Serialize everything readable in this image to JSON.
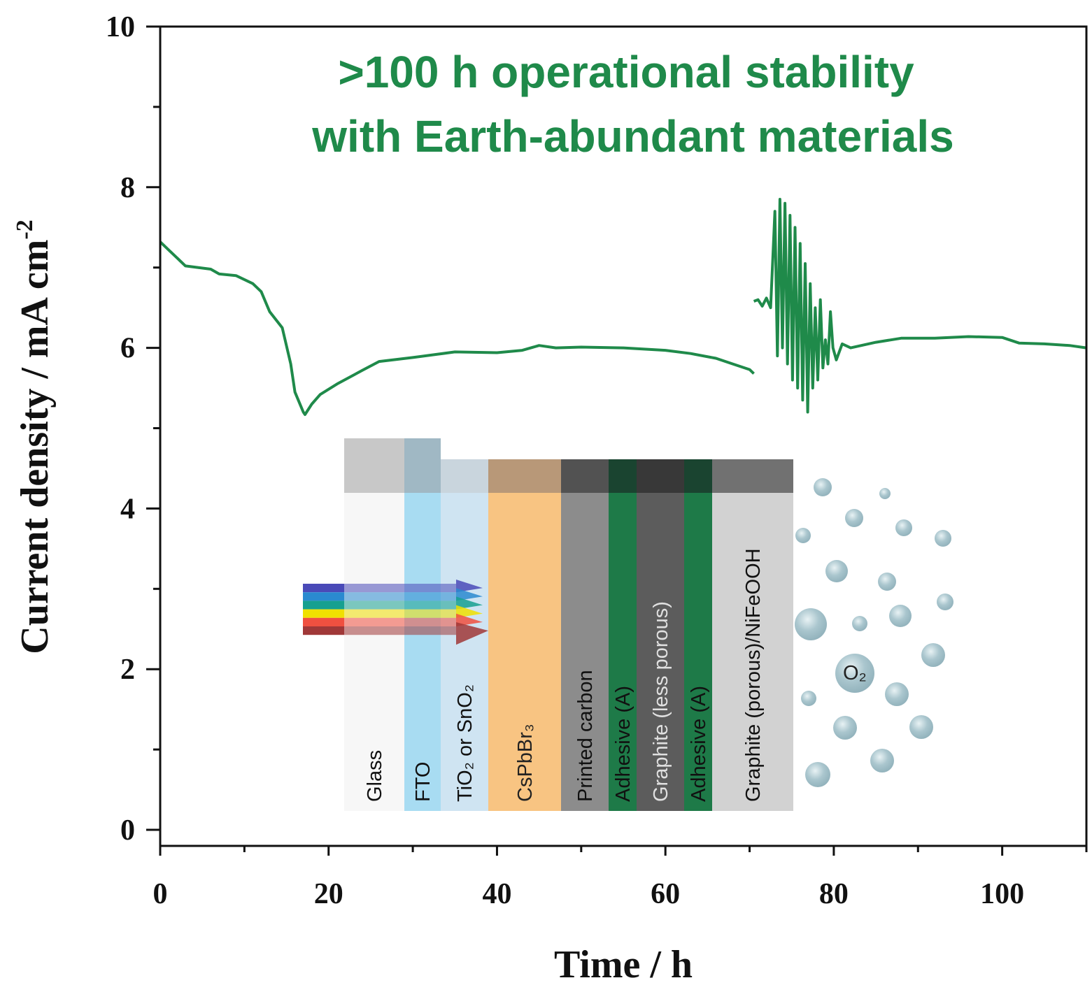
{
  "chart_data": {
    "type": "line",
    "title": "",
    "annotation": [
      ">100 h operational stability",
      "with Earth-abundant materials"
    ],
    "xlabel": "Time / h",
    "ylabel": "Current density / mA cm",
    "ylabel_sup": "-2",
    "xlim": [
      0,
      110
    ],
    "ylim": [
      -0.2,
      10
    ],
    "xticks": [
      0,
      20,
      40,
      60,
      80,
      100
    ],
    "yticks": [
      0,
      2,
      4,
      6,
      8,
      10
    ],
    "grid": false,
    "line_color": "#1f8a4a",
    "series": [
      {
        "name": "segment-1",
        "x": [
          0,
          1,
          3,
          6,
          7,
          9,
          11,
          12,
          13,
          14.5,
          15.5,
          16,
          17,
          17.2,
          18,
          19,
          21,
          24,
          26,
          30,
          35,
          40,
          43,
          45,
          47,
          50,
          55,
          60,
          63,
          66,
          68,
          70,
          70.5
        ],
        "y": [
          7.32,
          7.22,
          7.02,
          6.98,
          6.92,
          6.9,
          6.8,
          6.7,
          6.45,
          6.25,
          5.8,
          5.45,
          5.2,
          5.17,
          5.3,
          5.42,
          5.55,
          5.72,
          5.83,
          5.88,
          5.95,
          5.94,
          5.97,
          6.03,
          6.0,
          6.01,
          6.0,
          5.97,
          5.93,
          5.87,
          5.8,
          5.73,
          5.68
        ]
      },
      {
        "name": "segment-2",
        "x": [
          70.5,
          71,
          71.5,
          72,
          72.5,
          73,
          73.3,
          73.6,
          73.9,
          74.2,
          74.5,
          74.8,
          75.1,
          75.4,
          75.7,
          76,
          76.3,
          76.6,
          76.9,
          77.2,
          77.5,
          77.8,
          78.1,
          78.4,
          78.7,
          79,
          79.3,
          79.6,
          79.9,
          80.3,
          81,
          82,
          85,
          88,
          92,
          96,
          100,
          102,
          105,
          108,
          110
        ],
        "y": [
          6.58,
          6.6,
          6.52,
          6.62,
          6.5,
          7.7,
          5.9,
          7.85,
          6.0,
          7.8,
          5.8,
          7.65,
          5.6,
          7.5,
          5.5,
          7.3,
          5.35,
          7.05,
          5.2,
          6.8,
          5.5,
          6.5,
          5.6,
          6.6,
          5.75,
          6.1,
          5.8,
          6.45,
          6.0,
          5.85,
          6.05,
          6.0,
          6.07,
          6.12,
          6.12,
          6.14,
          6.13,
          6.06,
          6.05,
          6.03,
          6.0
        ]
      }
    ],
    "inset": {
      "layers": [
        {
          "label": "Glass",
          "body": "#f7f7f7",
          "top": "#c8c8c8",
          "text": "#111111"
        },
        {
          "label": "FTO",
          "body": "#a8dcf2",
          "top": "#a0b8c4",
          "text": "#111111"
        },
        {
          "label": "TiO₂ or SnO₂",
          "body": "#cfe4f2",
          "top": "#c9d5dd",
          "text": "#111111"
        },
        {
          "label": "CsPbBr₃",
          "body": "#f8c482",
          "top": "#b89878",
          "text": "#222222"
        },
        {
          "label": "Printed carbon",
          "body": "#8c8c8c",
          "top": "#525252",
          "text": "#111111"
        },
        {
          "label": "Adhesive (A)",
          "body": "#1e7a48",
          "top": "#1a4430",
          "text": "#111111"
        },
        {
          "label": "Graphite (less porous)",
          "body": "#5c5c5c",
          "top": "#383838",
          "text": "#e0e0e0"
        },
        {
          "label": "Adhesive (A)",
          "body": "#1e7a48",
          "top": "#1a4430",
          "text": "#111111"
        },
        {
          "label": "Graphite (porous)/NiFeOOH",
          "body": "#d2d2d2",
          "top": "#717171",
          "text": "#111111"
        }
      ],
      "light_colors": [
        "#4a4ab8",
        "#2a8ad0",
        "#16a090",
        "#f0e000",
        "#f05040",
        "#a03838"
      ],
      "gas_label": "O₂",
      "bubble_color": "#a9c5cd"
    }
  }
}
